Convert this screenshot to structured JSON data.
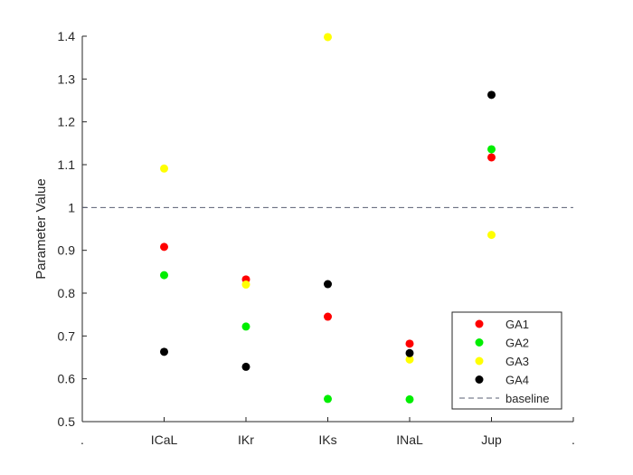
{
  "chart_data": {
    "type": "scatter",
    "title": "",
    "xlabel": "",
    "ylabel": "Parameter Value",
    "categories": [
      ".",
      "ICaL",
      "IKr",
      "IKs",
      "INaL",
      "Jup",
      "."
    ],
    "ylim": [
      0.5,
      1.4
    ],
    "yticks": [
      "0.5",
      "0.6",
      "0.7",
      "0.8",
      "0.9",
      "1",
      "1.1",
      "1.2",
      "1.3",
      "1.4"
    ],
    "grid": false,
    "legend_position": "bottom-right",
    "series": [
      {
        "name": "GA1",
        "color": "#ff0000",
        "points": [
          {
            "category": "ICaL",
            "value": 0.908
          },
          {
            "category": "IKr",
            "value": 0.832
          },
          {
            "category": "IKs",
            "value": 0.745
          },
          {
            "category": "INaL",
            "value": 0.682
          },
          {
            "category": "Jup",
            "value": 1.117
          }
        ]
      },
      {
        "name": "GA2",
        "color": "#00ee00",
        "points": [
          {
            "category": "ICaL",
            "value": 0.842
          },
          {
            "category": "IKr",
            "value": 0.722
          },
          {
            "category": "IKs",
            "value": 0.553
          },
          {
            "category": "INaL",
            "value": 0.552
          },
          {
            "category": "Jup",
            "value": 1.136
          }
        ]
      },
      {
        "name": "GA3",
        "color": "#ffff00",
        "points": [
          {
            "category": "ICaL",
            "value": 1.091
          },
          {
            "category": "IKr",
            "value": 0.82
          },
          {
            "category": "IKs",
            "value": 1.398
          },
          {
            "category": "INaL",
            "value": 0.645
          },
          {
            "category": "Jup",
            "value": 0.936
          }
        ]
      },
      {
        "name": "GA4",
        "color": "#000000",
        "points": [
          {
            "category": "ICaL",
            "value": 0.663
          },
          {
            "category": "IKr",
            "value": 0.628
          },
          {
            "category": "IKs",
            "value": 0.821
          },
          {
            "category": "INaL",
            "value": 0.66
          },
          {
            "category": "Jup",
            "value": 1.263
          }
        ]
      }
    ],
    "baseline": {
      "name": "baseline",
      "value": 1.0,
      "color": "#5a5f73",
      "style": "dashed"
    }
  }
}
